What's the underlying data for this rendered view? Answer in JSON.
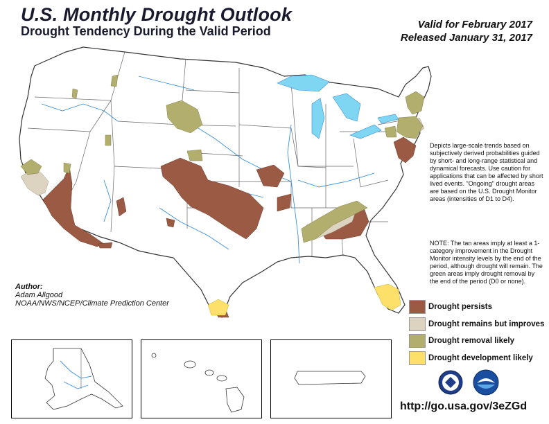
{
  "header": {
    "title": "U.S. Monthly Drought Outlook",
    "subtitle": "Drought Tendency During the Valid Period",
    "valid": "Valid for February 2017",
    "released": "Released January 31, 2017"
  },
  "description": "Depicts large-scale trends based on subjectively derived probabilities guided by short- and long-range statistical and dynamical forecasts. Use caution for applications that can be affected by short lived events. \"Ongoing\" drought areas are based on the U.S. Drought Monitor areas (intensities of D1 to D4).",
  "note": "NOTE: The tan areas imply at least a 1-category improvement in the Drought Monitor intensity levels by the end of the period, although drought will remain. The green areas imply drought removal by the end of the period (D0 or none).",
  "author": {
    "label": "Author:",
    "name": "Adam Allgood",
    "org": "NOAA/NWS/NCEP/Climate Prediction Center"
  },
  "legend": [
    {
      "label": "Drought persists",
      "color": "#9b5a44"
    },
    {
      "label": "Drought remains but improves",
      "color": "#ddd3c1"
    },
    {
      "label": "Drought removal likely",
      "color": "#b2ae6e"
    },
    {
      "label": "Drought development likely",
      "color": "#fde06a"
    }
  ],
  "colors": {
    "water": "#7fd6f2",
    "river": "#3b8ed8",
    "state_border": "#555555"
  },
  "icons": [
    "doc-seal-icon",
    "noaa-logo-icon"
  ],
  "url": "http://go.usa.gov/3eZGd"
}
